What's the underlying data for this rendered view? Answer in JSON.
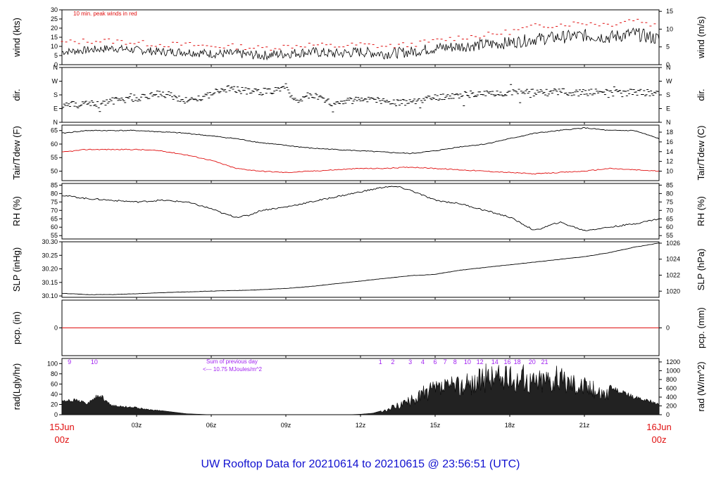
{
  "title": "UW Rooftop Data for 20210614  to  20210615 @ 23:56:51  (UTC)",
  "colors": {
    "line": "#000000",
    "peak": "#e01010",
    "dew": "#e01010",
    "precip": "#e01010",
    "title": "#1010d0",
    "purple": "#a020f0",
    "date": "#e01010"
  },
  "x_axis": {
    "range_hours": [
      0,
      24
    ],
    "ticks": [
      {
        "hour": 3,
        "label": "03z"
      },
      {
        "hour": 6,
        "label": "06z"
      },
      {
        "hour": 9,
        "label": "09z"
      },
      {
        "hour": 12,
        "label": "12z"
      },
      {
        "hour": 15,
        "label": "15z"
      },
      {
        "hour": 18,
        "label": "18z"
      },
      {
        "hour": 21,
        "label": "21z"
      }
    ],
    "start_date": "15Jun",
    "start_time": "00z",
    "end_date": "16Jun",
    "end_time": "00z"
  },
  "chart_data": [
    {
      "type": "line",
      "id": "wind",
      "ylabel": "wind (kts)",
      "ylabel_right": "wind (m/s)",
      "ylim": [
        0,
        30
      ],
      "yticks": [
        "0",
        "5",
        "10",
        "15",
        "20",
        "25",
        "30"
      ],
      "right_ticks": [
        {
          "value": 0,
          "label": "0"
        },
        {
          "value": 9.72,
          "label": "5"
        },
        {
          "value": 19.44,
          "label": "10"
        },
        {
          "value": 29.16,
          "label": "15"
        }
      ],
      "annotation": "10 min. peak winds in red",
      "series": [
        {
          "role": "speed",
          "x": [
            0,
            1,
            2,
            3,
            4,
            5,
            6,
            7,
            8,
            9,
            10,
            11,
            12,
            13,
            14,
            15,
            16,
            17,
            18,
            19,
            20,
            21,
            22,
            23,
            24
          ],
          "y": [
            7,
            8,
            9,
            8,
            7,
            7,
            6,
            6,
            5,
            6,
            7,
            6,
            7,
            6,
            7,
            9,
            10,
            11,
            12,
            14,
            15,
            16,
            15,
            17,
            14
          ]
        },
        {
          "role": "peak",
          "x": [
            0,
            1,
            2,
            3,
            4,
            5,
            6,
            7,
            8,
            9,
            10,
            11,
            12,
            13,
            14,
            15,
            16,
            17,
            18,
            19,
            20,
            21,
            22,
            23,
            24
          ],
          "y": [
            12,
            13,
            13,
            12,
            11,
            11,
            10,
            10,
            9,
            10,
            11,
            10,
            11,
            10,
            11,
            13,
            15,
            16,
            18,
            21,
            22,
            23,
            22,
            25,
            21
          ]
        }
      ]
    },
    {
      "type": "scatter",
      "id": "dir",
      "ylabel": "dir.",
      "ylabel_right": "dir.",
      "ylim": [
        0,
        360
      ],
      "yticks": [
        "N",
        "E",
        "S",
        "W",
        "N"
      ],
      "x": [
        0,
        0.5,
        1,
        1.5,
        2,
        2.5,
        3,
        3.5,
        4,
        4.5,
        5,
        5.5,
        6,
        6.5,
        7,
        7.5,
        8,
        8.5,
        9,
        9.5,
        10,
        10.5,
        11,
        11.5,
        12,
        12.5,
        13,
        13.5,
        14,
        14.5,
        15,
        15.5,
        16,
        16.5,
        17,
        17.5,
        18,
        18.5,
        19,
        19.5,
        20,
        20.5,
        21,
        21.5,
        22,
        22.5,
        23,
        23.5,
        24
      ],
      "y": [
        110,
        115,
        120,
        130,
        140,
        150,
        160,
        175,
        190,
        170,
        140,
        160,
        185,
        220,
        215,
        205,
        200,
        210,
        215,
        140,
        185,
        150,
        120,
        140,
        145,
        150,
        140,
        125,
        135,
        150,
        165,
        175,
        180,
        185,
        190,
        195,
        195,
        200,
        195,
        195,
        200,
        195,
        195,
        200,
        195,
        190,
        200,
        195,
        190
      ]
    },
    {
      "type": "line",
      "id": "temp",
      "ylabel": "Tair/Tdew (F)",
      "ylabel_right": "Tair/Tdew (C)",
      "ylim": [
        46.5,
        67
      ],
      "yticks": [
        "50",
        "55",
        "60",
        "65"
      ],
      "right_ticks": [
        {
          "value": 50,
          "label": "10"
        },
        {
          "value": 53.6,
          "label": "12"
        },
        {
          "value": 57.2,
          "label": "14"
        },
        {
          "value": 60.8,
          "label": "16"
        },
        {
          "value": 64.4,
          "label": "18"
        }
      ],
      "series": [
        {
          "role": "air",
          "x": [
            0,
            1,
            2,
            3,
            4,
            5,
            6,
            7,
            8,
            9,
            10,
            11,
            12,
            13,
            14,
            15,
            16,
            17,
            18,
            19,
            20,
            21,
            22,
            23,
            24
          ],
          "y": [
            64,
            65,
            65,
            65,
            64.5,
            64,
            63,
            62,
            60.5,
            59.5,
            58.5,
            58,
            57.5,
            57,
            56.5,
            57.5,
            59,
            60,
            62,
            64,
            65,
            66,
            65,
            65,
            62
          ]
        },
        {
          "role": "dew",
          "x": [
            0,
            1,
            2,
            3,
            4,
            5,
            6,
            7,
            8,
            9,
            10,
            11,
            12,
            13,
            14,
            15,
            16,
            17,
            18,
            19,
            20,
            21,
            22,
            23,
            24
          ],
          "y": [
            57,
            58,
            58,
            58,
            57.5,
            56,
            54,
            51,
            50,
            49.5,
            50,
            50.5,
            51,
            51,
            51.5,
            51,
            50.5,
            50,
            49.5,
            49,
            49.5,
            50,
            51,
            50.5,
            50
          ]
        }
      ]
    },
    {
      "type": "line",
      "id": "rh",
      "ylabel": "RH (%)",
      "ylabel_right": "RH (%)",
      "ylim": [
        53,
        86
      ],
      "yticks": [
        "55",
        "60",
        "65",
        "70",
        "75",
        "80",
        "85"
      ],
      "series": [
        {
          "x": [
            0,
            1,
            2,
            3,
            4,
            5,
            6,
            6.5,
            7,
            7.5,
            8,
            9,
            10,
            11,
            12,
            13,
            13.5,
            14,
            15,
            16,
            17,
            18,
            19,
            20,
            21,
            22,
            23,
            24
          ],
          "y": [
            79,
            77,
            76,
            75,
            76,
            75,
            71,
            68,
            66,
            67,
            70,
            72,
            75,
            78,
            81,
            84,
            84,
            82,
            76,
            74,
            70,
            66,
            58,
            63,
            58,
            60,
            62,
            65
          ]
        }
      ]
    },
    {
      "type": "line",
      "id": "slp",
      "ylabel": "SLP (inHg)",
      "ylabel_right": "SLP (hPa)",
      "ylim": [
        30.095,
        30.3
      ],
      "yticks": [
        "30.10",
        "30.15",
        "30.20",
        "30.25",
        "30.30"
      ],
      "right_ticks": [
        {
          "value": 30.1177,
          "label": "1020"
        },
        {
          "value": 30.1768,
          "label": "1022"
        },
        {
          "value": 30.2358,
          "label": "1024"
        },
        {
          "value": 30.2949,
          "label": "1026"
        }
      ],
      "series": [
        {
          "x": [
            0,
            1,
            2,
            3,
            4,
            5,
            6,
            7,
            8,
            9,
            10,
            11,
            12,
            13,
            14,
            15,
            16,
            17,
            18,
            19,
            20,
            21,
            22,
            23,
            24
          ],
          "y": [
            30.11,
            30.105,
            30.105,
            30.108,
            30.112,
            30.115,
            30.118,
            30.12,
            30.123,
            30.128,
            30.135,
            30.145,
            30.155,
            30.165,
            30.175,
            30.18,
            30.195,
            30.205,
            30.215,
            30.225,
            30.235,
            30.245,
            30.26,
            30.28,
            30.295
          ]
        }
      ]
    },
    {
      "type": "line",
      "id": "precip",
      "ylabel": "pcp. (in)",
      "ylabel_right": "pcp. (mm)",
      "ylim": [
        -1,
        1
      ],
      "yticks": [
        "0"
      ],
      "right_ticks": [
        {
          "value": 0,
          "label": "0"
        }
      ],
      "series": [
        {
          "x": [
            0,
            24
          ],
          "y": [
            0,
            0
          ]
        }
      ]
    },
    {
      "type": "area",
      "id": "rad",
      "ylabel": "rad(Lgly/hr)",
      "ylabel_right": "rad (W/m^2)",
      "ylim": [
        0,
        110
      ],
      "yticks": [
        "0",
        "20",
        "40",
        "60",
        "80",
        "100"
      ],
      "right_ticks": [
        {
          "value": 0,
          "label": "0"
        },
        {
          "value": 17.2,
          "label": "200"
        },
        {
          "value": 34.4,
          "label": "400"
        },
        {
          "value": 51.6,
          "label": "600"
        },
        {
          "value": 68.8,
          "label": "800"
        },
        {
          "value": 86.0,
          "label": "1000"
        },
        {
          "value": 103.2,
          "label": "1200"
        }
      ],
      "annotation_lines": [
        "Sum of previous day",
        "<--- 10.75 MJoules/m^2"
      ],
      "hour_labels": [
        {
          "hour": 0.3,
          "label": "9"
        },
        {
          "hour": 1.3,
          "label": "10"
        },
        {
          "hour": 12.8,
          "label": "1"
        },
        {
          "hour": 13.3,
          "label": "2"
        },
        {
          "hour": 14.0,
          "label": "3"
        },
        {
          "hour": 14.5,
          "label": "4"
        },
        {
          "hour": 15.0,
          "label": "6"
        },
        {
          "hour": 15.4,
          "label": "7"
        },
        {
          "hour": 15.8,
          "label": "8"
        },
        {
          "hour": 16.3,
          "label": "10"
        },
        {
          "hour": 16.8,
          "label": "12"
        },
        {
          "hour": 17.4,
          "label": "14"
        },
        {
          "hour": 17.9,
          "label": "16"
        },
        {
          "hour": 18.3,
          "label": "18"
        },
        {
          "hour": 18.9,
          "label": "20"
        },
        {
          "hour": 19.4,
          "label": "21"
        }
      ],
      "x": [
        0,
        0.5,
        1,
        1.5,
        2,
        2.5,
        3,
        3.5,
        4,
        4.5,
        5,
        6,
        7,
        8,
        9,
        10,
        11,
        11.5,
        12,
        12.5,
        13,
        13.5,
        14,
        14.5,
        15,
        15.5,
        16,
        16.5,
        17,
        17.5,
        18,
        18.5,
        19,
        19.5,
        20,
        20.5,
        21,
        21.5,
        22,
        22.5,
        23,
        23.5,
        24
      ],
      "y": [
        25,
        30,
        22,
        40,
        18,
        16,
        14,
        10,
        8,
        5,
        2,
        0,
        0,
        0,
        0,
        0,
        0,
        0,
        1,
        3,
        10,
        25,
        35,
        55,
        65,
        70,
        75,
        80,
        95,
        98,
        90,
        95,
        85,
        95,
        90,
        85,
        75,
        60,
        55,
        45,
        35,
        30,
        20
      ]
    }
  ]
}
